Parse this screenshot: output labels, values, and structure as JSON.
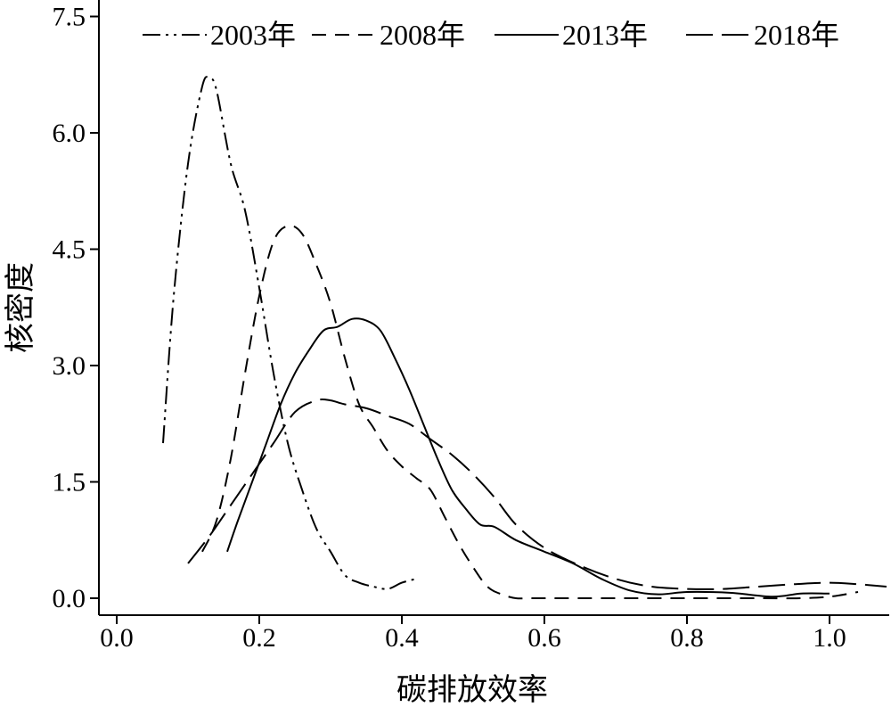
{
  "chart_data": {
    "type": "line",
    "title": "",
    "xlabel": "碳排放效率",
    "ylabel": "核密度",
    "xlim": [
      0.0,
      1.08
    ],
    "ylim": [
      0.0,
      7.5
    ],
    "x_ticks": [
      "0.0",
      "0.2",
      "0.4",
      "0.6",
      "0.8",
      "1.0"
    ],
    "x_tick_values": [
      0.0,
      0.2,
      0.4,
      0.6,
      0.8,
      1.0
    ],
    "y_ticks": [
      "0.0",
      "1.5",
      "3.0",
      "4.5",
      "6.0",
      "7.5"
    ],
    "y_tick_values": [
      0.0,
      1.5,
      3.0,
      4.5,
      6.0,
      7.5
    ],
    "legend_position": "top",
    "series": [
      {
        "name": "2003年",
        "dash": "dash-dot-dot",
        "x": [
          0.065,
          0.08,
          0.1,
          0.12,
          0.13,
          0.14,
          0.16,
          0.18,
          0.2,
          0.22,
          0.24,
          0.26,
          0.28,
          0.3,
          0.32,
          0.34,
          0.36,
          0.38,
          0.4,
          0.42
        ],
        "y": [
          2.0,
          3.9,
          5.6,
          6.6,
          6.7,
          6.55,
          5.6,
          5.0,
          4.0,
          2.9,
          2.0,
          1.4,
          0.9,
          0.6,
          0.3,
          0.2,
          0.15,
          0.12,
          0.2,
          0.25
        ]
      },
      {
        "name": "2008年",
        "dash": "dash",
        "x": [
          0.12,
          0.14,
          0.16,
          0.18,
          0.2,
          0.22,
          0.24,
          0.26,
          0.28,
          0.3,
          0.32,
          0.34,
          0.36,
          0.38,
          0.4,
          0.42,
          0.44,
          0.46,
          0.48,
          0.5,
          0.52,
          0.54,
          0.56,
          0.58,
          0.62,
          0.7,
          0.8,
          0.9,
          0.96,
          1.0,
          1.04
        ],
        "y": [
          0.6,
          1.0,
          1.8,
          2.9,
          3.9,
          4.6,
          4.8,
          4.7,
          4.3,
          3.8,
          3.1,
          2.5,
          2.2,
          1.9,
          1.7,
          1.55,
          1.4,
          1.05,
          0.7,
          0.4,
          0.15,
          0.05,
          0.0,
          0.0,
          0.0,
          0.0,
          0.0,
          0.0,
          0.0,
          0.02,
          0.08
        ]
      },
      {
        "name": "2013年",
        "dash": "solid",
        "x": [
          0.155,
          0.17,
          0.19,
          0.21,
          0.23,
          0.25,
          0.27,
          0.29,
          0.31,
          0.33,
          0.35,
          0.37,
          0.39,
          0.41,
          0.43,
          0.45,
          0.47,
          0.49,
          0.51,
          0.53,
          0.56,
          0.6,
          0.64,
          0.68,
          0.72,
          0.76,
          0.8,
          0.86,
          0.92,
          0.96,
          1.0
        ],
        "y": [
          0.6,
          1.0,
          1.5,
          2.0,
          2.5,
          2.9,
          3.2,
          3.45,
          3.5,
          3.6,
          3.58,
          3.45,
          3.1,
          2.7,
          2.25,
          1.8,
          1.4,
          1.15,
          0.95,
          0.92,
          0.75,
          0.6,
          0.45,
          0.25,
          0.1,
          0.05,
          0.08,
          0.07,
          0.02,
          0.06,
          0.06
        ]
      },
      {
        "name": "2018年",
        "dash": "long-dash",
        "x": [
          0.1,
          0.13,
          0.16,
          0.19,
          0.22,
          0.25,
          0.28,
          0.3,
          0.32,
          0.35,
          0.38,
          0.41,
          0.44,
          0.47,
          0.5,
          0.53,
          0.56,
          0.6,
          0.65,
          0.7,
          0.75,
          0.8,
          0.85,
          0.9,
          0.95,
          1.0,
          1.04,
          1.08
        ],
        "y": [
          0.45,
          0.8,
          1.2,
          1.6,
          2.0,
          2.4,
          2.55,
          2.55,
          2.5,
          2.45,
          2.35,
          2.25,
          2.05,
          1.85,
          1.6,
          1.3,
          0.95,
          0.65,
          0.42,
          0.25,
          0.15,
          0.12,
          0.12,
          0.15,
          0.18,
          0.2,
          0.18,
          0.15
        ]
      }
    ]
  }
}
